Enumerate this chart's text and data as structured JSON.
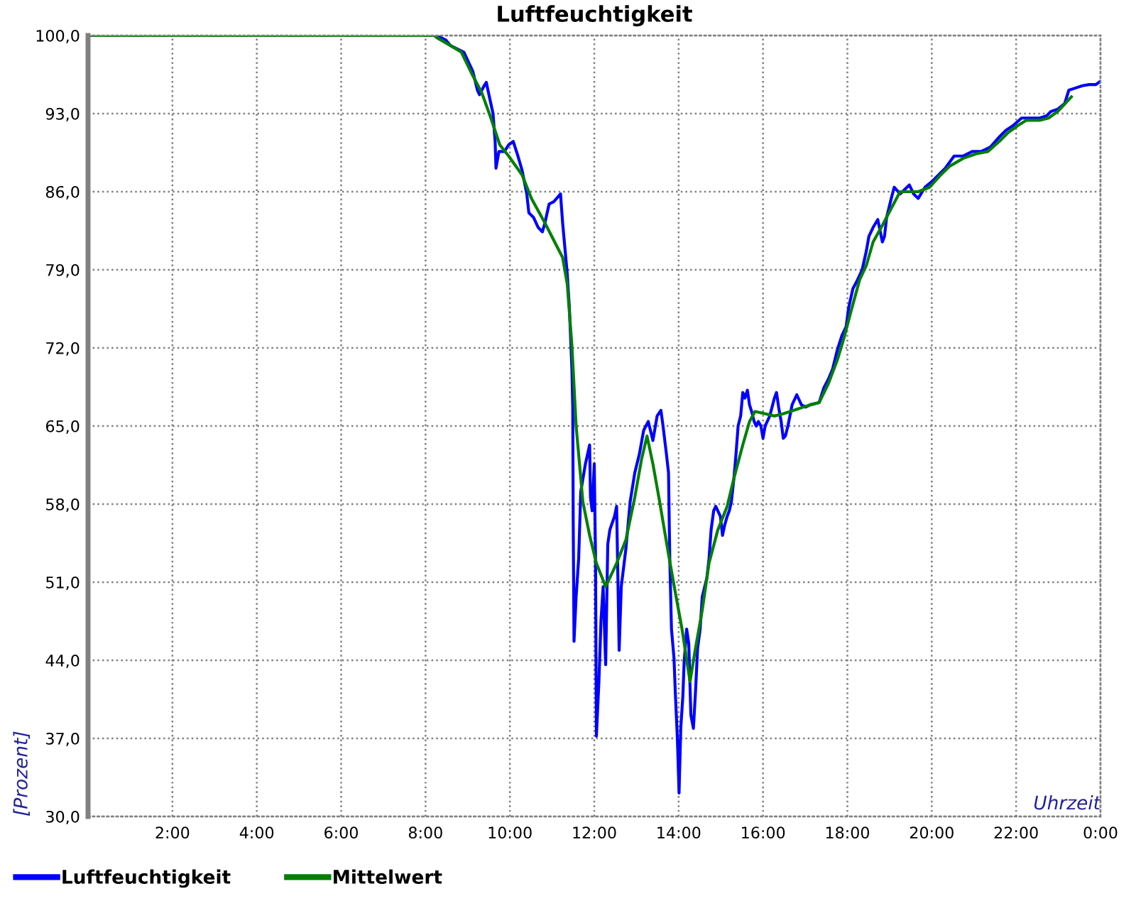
{
  "chart_data": {
    "type": "line",
    "title": "Luftfeuchtigkeit",
    "xlabel": "Uhrzeit",
    "ylabel": "[Prozent]",
    "xlim": [
      0,
      24
    ],
    "ylim": [
      30,
      100
    ],
    "xticks": [
      {
        "value": 0,
        "label": null
      },
      {
        "value": 2,
        "label": "2:00"
      },
      {
        "value": 4,
        "label": "4:00"
      },
      {
        "value": 6,
        "label": "6:00"
      },
      {
        "value": 8,
        "label": "8:00"
      },
      {
        "value": 10,
        "label": "10:00"
      },
      {
        "value": 12,
        "label": "12:00"
      },
      {
        "value": 14,
        "label": "14:00"
      },
      {
        "value": 16,
        "label": "16:00"
      },
      {
        "value": 18,
        "label": "18:00"
      },
      {
        "value": 20,
        "label": "20:00"
      },
      {
        "value": 22,
        "label": "22:00"
      },
      {
        "value": 24,
        "label": "0:00"
      }
    ],
    "yticks": [
      {
        "value": 30,
        "label": "30,0"
      },
      {
        "value": 37,
        "label": "37,0"
      },
      {
        "value": 44,
        "label": "44,0"
      },
      {
        "value": 51,
        "label": "51,0"
      },
      {
        "value": 58,
        "label": "58,0"
      },
      {
        "value": 65,
        "label": "65,0"
      },
      {
        "value": 72,
        "label": "72,0"
      },
      {
        "value": 79,
        "label": "79,0"
      },
      {
        "value": 86,
        "label": "86,0"
      },
      {
        "value": 93,
        "label": "93,0"
      },
      {
        "value": 100,
        "label": "100,0"
      }
    ],
    "grid": true,
    "legend": "bottom",
    "series": [
      {
        "name": "Luftfeuchtigkeit",
        "color": "#0000ff",
        "x": [
          0,
          8.2,
          8.26,
          8.48,
          8.59,
          8.91,
          9.12,
          9.23,
          9.28,
          9.39,
          9.44,
          9.6,
          9.65,
          9.67,
          9.74,
          9.87,
          9.97,
          10.08,
          10.19,
          10.29,
          10.4,
          10.45,
          10.56,
          10.67,
          10.77,
          10.83,
          10.93,
          11.04,
          11.2,
          11.25,
          11.31,
          11.36,
          11.41,
          11.47,
          11.49,
          11.5,
          11.52,
          11.57,
          11.63,
          11.68,
          11.79,
          11.89,
          11.91,
          11.95,
          12.0,
          12.03,
          12.05,
          12.11,
          12.16,
          12.21,
          12.27,
          12.32,
          12.37,
          12.48,
          12.53,
          12.59,
          12.64,
          12.75,
          12.85,
          12.96,
          13.07,
          13.17,
          13.28,
          13.39,
          13.49,
          13.58,
          13.63,
          13.71,
          13.76,
          13.79,
          13.83,
          13.89,
          13.92,
          13.97,
          14.01,
          14.05,
          14.1,
          14.13,
          14.19,
          14.24,
          14.29,
          14.35,
          14.4,
          14.45,
          14.51,
          14.56,
          14.67,
          14.72,
          14.77,
          14.83,
          14.88,
          14.99,
          15.04,
          15.09,
          15.15,
          15.2,
          15.25,
          15.31,
          15.36,
          15.41,
          15.47,
          15.52,
          15.57,
          15.63,
          15.68,
          15.73,
          15.79,
          15.84,
          15.89,
          15.95,
          16.0,
          16.05,
          16.16,
          16.27,
          16.32,
          16.37,
          16.43,
          16.48,
          16.53,
          16.59,
          16.69,
          16.8,
          16.91,
          17.01,
          17.12,
          17.33,
          17.44,
          17.55,
          17.65,
          17.76,
          17.87,
          17.97,
          18.03,
          18.13,
          18.24,
          18.35,
          18.45,
          18.51,
          18.61,
          18.72,
          18.83,
          18.88,
          18.93,
          19.04,
          19.11,
          19.25,
          19.47,
          19.57,
          19.68,
          19.84,
          20.0,
          20.16,
          20.32,
          20.53,
          20.75,
          20.96,
          21.17,
          21.39,
          21.6,
          21.76,
          21.92,
          22.13,
          22.35,
          22.56,
          22.72,
          22.83,
          22.99,
          23.15,
          23.25,
          23.41,
          23.57,
          23.73,
          23.89,
          24.0
        ],
        "values": [
          100,
          100,
          100,
          99.6,
          99.1,
          98.5,
          96.8,
          95.1,
          94.7,
          95.5,
          95.8,
          93.0,
          90.5,
          88.1,
          89.6,
          89.6,
          90.2,
          90.5,
          89.2,
          87.9,
          85.8,
          84.1,
          83.7,
          82.8,
          82.4,
          83.2,
          84.9,
          85.1,
          85.8,
          83.2,
          80.7,
          78.6,
          75.6,
          70.1,
          66.7,
          56.9,
          45.7,
          49.7,
          53.1,
          59.1,
          61.6,
          63.3,
          58.6,
          57.4,
          61.6,
          53.1,
          37.2,
          42.1,
          47.6,
          50.6,
          43.6,
          54.4,
          55.7,
          56.9,
          57.8,
          44.9,
          50.6,
          54.0,
          58.2,
          60.8,
          62.5,
          64.6,
          65.4,
          63.7,
          65.9,
          66.4,
          65.0,
          62.5,
          60.8,
          53.1,
          46.8,
          44.2,
          41.2,
          37.0,
          32.1,
          37.9,
          40.8,
          43.8,
          46.8,
          45.5,
          39.1,
          37.9,
          41.2,
          45.1,
          46.8,
          49.7,
          51.4,
          53.1,
          55.7,
          57.4,
          57.8,
          56.9,
          55.2,
          56.1,
          56.9,
          57.4,
          58.2,
          60.3,
          62.5,
          65.0,
          65.9,
          68.0,
          67.5,
          68.2,
          66.9,
          66.3,
          65.4,
          65.0,
          65.4,
          65.0,
          63.9,
          65.0,
          65.9,
          67.5,
          68.0,
          66.7,
          65.4,
          63.9,
          64.1,
          65.0,
          66.9,
          67.8,
          66.9,
          66.7,
          66.9,
          67.1,
          68.4,
          69.2,
          70.1,
          71.8,
          73.1,
          73.9,
          75.6,
          77.3,
          78.1,
          79.0,
          80.7,
          82.0,
          82.8,
          83.5,
          81.5,
          82.0,
          83.7,
          85.4,
          86.4,
          85.8,
          86.6,
          85.8,
          85.4,
          86.4,
          86.9,
          87.5,
          88.1,
          89.2,
          89.2,
          89.6,
          89.6,
          90.0,
          90.9,
          91.5,
          91.9,
          92.6,
          92.6,
          92.6,
          92.8,
          93.2,
          93.4,
          93.9,
          95.1,
          95.3,
          95.5,
          95.6,
          95.6,
          95.9
        ]
      },
      {
        "name": "Mittelwert",
        "color": "#008000",
        "x": [
          0,
          8.21,
          8.27,
          8.59,
          8.85,
          9.12,
          9.33,
          9.55,
          9.76,
          9.97,
          10.29,
          10.51,
          10.83,
          11.25,
          11.36,
          11.47,
          11.57,
          11.73,
          11.89,
          12.05,
          12.27,
          12.53,
          12.75,
          12.96,
          13.12,
          13.25,
          13.39,
          13.55,
          13.76,
          13.92,
          14.08,
          14.27,
          14.4,
          14.56,
          14.72,
          14.93,
          15.15,
          15.31,
          15.52,
          15.68,
          15.81,
          16.05,
          16.27,
          16.48,
          16.8,
          17.12,
          17.33,
          17.55,
          17.76,
          17.92,
          18.08,
          18.29,
          18.45,
          18.61,
          18.83,
          19.04,
          19.25,
          19.68,
          19.95,
          20.21,
          20.43,
          20.75,
          21.06,
          21.33,
          21.6,
          21.81,
          22.03,
          22.24,
          22.56,
          22.77,
          22.99,
          23.31
        ],
        "values": [
          100,
          100,
          99.8,
          99.1,
          98.5,
          96.4,
          94.9,
          92.6,
          90.2,
          89.2,
          87.5,
          85.4,
          83.2,
          80.1,
          77.7,
          72.2,
          65.0,
          58.2,
          55.2,
          52.7,
          50.6,
          52.7,
          54.8,
          58.6,
          62.0,
          64.1,
          61.6,
          58.2,
          53.5,
          50.1,
          46.8,
          42.1,
          45.1,
          48.5,
          52.7,
          55.7,
          57.8,
          60.3,
          63.3,
          65.4,
          66.3,
          66.1,
          65.9,
          66.1,
          66.5,
          66.9,
          67.1,
          68.8,
          70.9,
          72.9,
          75.2,
          78.1,
          79.4,
          81.5,
          83.0,
          84.5,
          86.0,
          86.0,
          86.4,
          87.5,
          88.3,
          89.0,
          89.4,
          89.6,
          90.5,
          91.3,
          91.9,
          92.4,
          92.4,
          92.6,
          93.2,
          94.5
        ]
      }
    ]
  }
}
